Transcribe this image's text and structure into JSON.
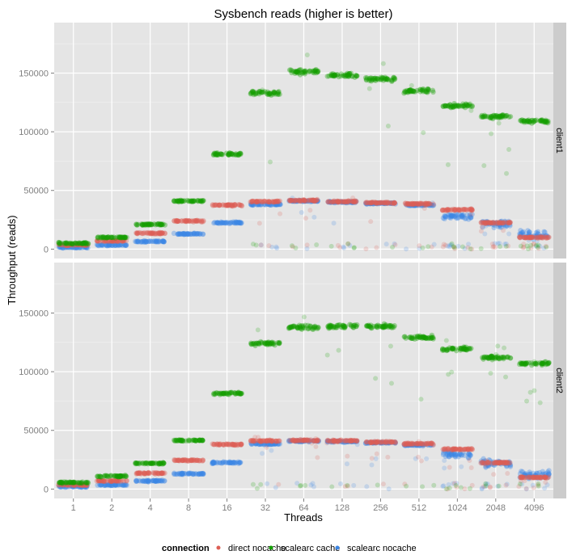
{
  "chart_data": {
    "type": "scatter",
    "title": "Sysbench reads (higher is better)",
    "xlabel": "Threads",
    "ylabel": "Throughput (reads)",
    "categories": [
      "1",
      "2",
      "4",
      "8",
      "16",
      "32",
      "64",
      "128",
      "256",
      "512",
      "1024",
      "2048",
      "4096"
    ],
    "yticks": [
      0,
      50000,
      100000,
      150000
    ],
    "ytick_labels": [
      "0",
      "50000",
      "100000",
      "150000"
    ],
    "ylim": [
      -8000,
      193000
    ],
    "grid": true,
    "legend": {
      "title": "connection",
      "placement": "bottom"
    },
    "series_colors": {
      "direct nocache": "#dd5f55",
      "scalearc cache": "#139f00",
      "scalearc nocache": "#3b86e6"
    },
    "facets": [
      {
        "label": "client1",
        "series": [
          {
            "name": "direct nocache",
            "values": [
              3500,
              7000,
              13500,
              24000,
              37500,
              40500,
              41500,
              40500,
              39500,
              38500,
              33500,
              22500,
              10000
            ]
          },
          {
            "name": "scalearc cache",
            "values": [
              5000,
              10000,
              21000,
              41000,
              81000,
              133000,
              151000,
              148000,
              145000,
              135000,
              122000,
              113000,
              109000
            ]
          },
          {
            "name": "scalearc nocache",
            "values": [
              1500,
              3500,
              6500,
              13000,
              22500,
              38000,
              41000,
              40000,
              39000,
              37500,
              28000,
              21500,
              12000
            ]
          }
        ]
      },
      {
        "label": "client2",
        "series": [
          {
            "name": "direct nocache",
            "values": [
              3500,
              7000,
              13500,
              24500,
              38000,
              41000,
              41500,
              41000,
              40000,
              38500,
              34000,
              22500,
              10000
            ]
          },
          {
            "name": "scalearc cache",
            "values": [
              5500,
              11000,
              22000,
              41500,
              81500,
              124000,
              138000,
              138500,
              138500,
              129000,
              119500,
              112000,
              107000
            ]
          },
          {
            "name": "scalearc nocache",
            "values": [
              2000,
              3500,
              7000,
              13000,
              22500,
              38500,
              41000,
              40500,
              39500,
              37500,
              29000,
              22000,
              12000
            ]
          }
        ]
      }
    ]
  }
}
